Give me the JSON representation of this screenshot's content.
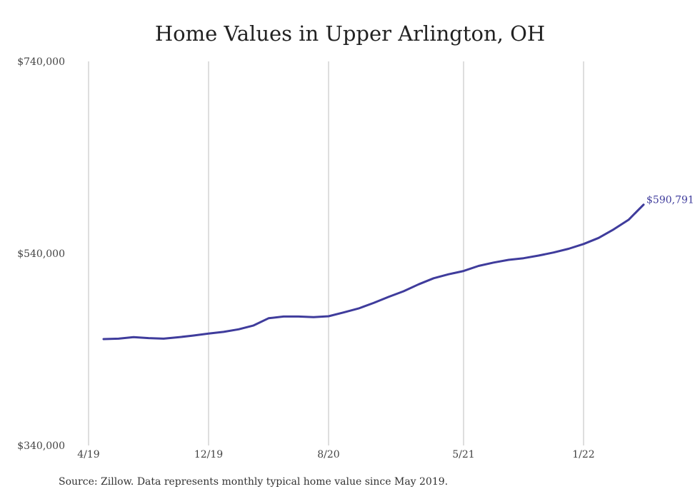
{
  "chart_data": {
    "type": "line",
    "title": "Home Values in Upper Arlington, OH",
    "source": "Source: Zillow. Data represents monthly typical home value since May 2019.",
    "xlabel": "",
    "ylabel": "",
    "ylim": [
      340000,
      740000
    ],
    "y_ticks": [
      "$740,000",
      "$540,000",
      "$340,000"
    ],
    "y_tick_values": [
      740000,
      540000,
      340000
    ],
    "x_tick_labels": [
      "4/19",
      "12/19",
      "8/20",
      "5/21",
      "1/22"
    ],
    "x_tick_months": [
      "2019-04",
      "2019-12",
      "2020-08",
      "2021-05",
      "2022-01"
    ],
    "grid": "vertical",
    "line_color": "#3f3c9c",
    "series": [
      {
        "x": [
          "2019-05",
          "2019-06",
          "2019-07",
          "2019-08",
          "2019-09",
          "2019-10",
          "2019-11",
          "2019-12",
          "2020-01",
          "2020-02",
          "2020-03",
          "2020-04",
          "2020-05",
          "2020-06",
          "2020-07",
          "2020-08",
          "2020-09",
          "2020-10",
          "2020-11",
          "2020-12",
          "2021-01",
          "2021-02",
          "2021-03",
          "2021-04",
          "2021-05",
          "2021-06",
          "2021-07",
          "2021-08",
          "2021-09",
          "2021-10",
          "2021-11",
          "2021-12",
          "2022-01",
          "2022-02",
          "2022-03",
          "2022-04",
          "2022-05"
        ],
        "values": [
          450800,
          451200,
          452800,
          451800,
          451200,
          452700,
          454500,
          456500,
          458300,
          461000,
          465000,
          472500,
          474300,
          474300,
          473700,
          474600,
          478500,
          482700,
          488400,
          494700,
          500600,
          507800,
          514100,
          518300,
          521700,
          527000,
          530500,
          533300,
          535000,
          537800,
          541000,
          544800,
          549800,
          556100,
          565000,
          575000,
          590791
        ]
      }
    ],
    "annotations": [
      {
        "text": "$590,791",
        "x": "2022-05",
        "y": 590791
      }
    ]
  }
}
